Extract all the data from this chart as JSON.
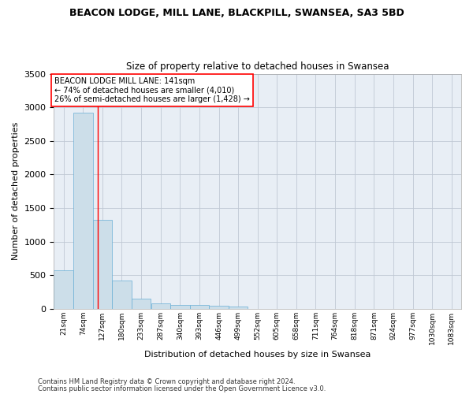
{
  "title1": "BEACON LODGE, MILL LANE, BLACKPILL, SWANSEA, SA3 5BD",
  "title2": "Size of property relative to detached houses in Swansea",
  "xlabel": "Distribution of detached houses by size in Swansea",
  "ylabel": "Number of detached properties",
  "footer1": "Contains HM Land Registry data © Crown copyright and database right 2024.",
  "footer2": "Contains public sector information licensed under the Open Government Licence v3.0.",
  "annotation_line1": "BEACON LODGE MILL LANE: 141sqm",
  "annotation_line2": "← 74% of detached houses are smaller (4,010)",
  "annotation_line3": "26% of semi-detached houses are larger (1,428) →",
  "bar_color": "#ccdee9",
  "bar_edge_color": "#6aafd6",
  "red_line_x": 141,
  "categories": [
    "21sqm",
    "74sqm",
    "127sqm",
    "180sqm",
    "233sqm",
    "287sqm",
    "340sqm",
    "393sqm",
    "446sqm",
    "499sqm",
    "552sqm",
    "605sqm",
    "658sqm",
    "711sqm",
    "764sqm",
    "818sqm",
    "871sqm",
    "924sqm",
    "977sqm",
    "1030sqm",
    "1083sqm"
  ],
  "bin_edges": [
    21,
    74,
    127,
    180,
    233,
    287,
    340,
    393,
    446,
    499,
    552,
    605,
    658,
    711,
    764,
    818,
    871,
    924,
    977,
    1030,
    1083,
    1136
  ],
  "values": [
    570,
    2920,
    1320,
    415,
    150,
    80,
    55,
    55,
    40,
    30,
    0,
    0,
    0,
    0,
    0,
    0,
    0,
    0,
    0,
    0,
    0
  ],
  "ylim": [
    0,
    3500
  ],
  "yticks": [
    0,
    500,
    1000,
    1500,
    2000,
    2500,
    3000,
    3500
  ],
  "background_color": "#ffffff",
  "plot_bg_color": "#e8eef5",
  "grid_color": "#c0c8d4"
}
